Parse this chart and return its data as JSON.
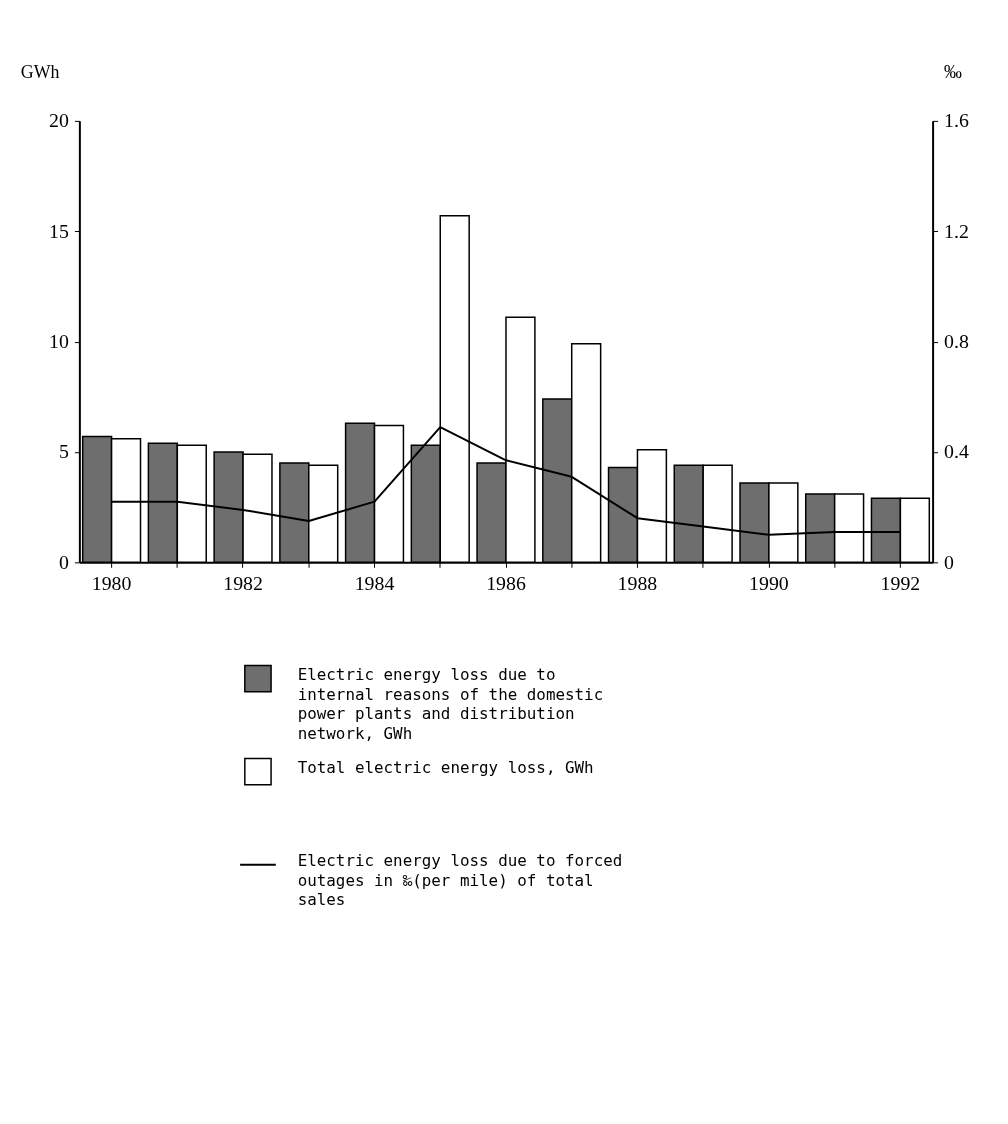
{
  "chart_data": {
    "type": "bar",
    "categories": [
      "1980",
      null,
      "1982",
      null,
      "1984",
      null,
      "1986",
      null,
      "1988",
      null,
      "1990",
      null,
      "1992"
    ],
    "series": [
      {
        "name": "Electric energy loss due to internal reasons of the domestic power plants and distribution network, GWh",
        "color": "#6e6e6e",
        "values": [
          5.7,
          5.4,
          5.0,
          4.5,
          6.3,
          5.3,
          4.5,
          7.4,
          4.3,
          4.4,
          3.6,
          3.1,
          2.9
        ]
      },
      {
        "name": "Total electric energy loss, GWh",
        "color": "#ffffff",
        "values": [
          5.6,
          5.3,
          4.9,
          4.4,
          6.2,
          15.7,
          11.1,
          9.9,
          5.1,
          4.4,
          3.6,
          3.1,
          2.9
        ]
      },
      {
        "name": "Electric energy loss due to forced outages in ‰(per mile) of total sales",
        "type": "line",
        "axis": "y2",
        "color": "#000000",
        "values": [
          0.22,
          0.22,
          0.19,
          0.15,
          0.22,
          0.49,
          0.37,
          0.31,
          0.16,
          0.13,
          0.1,
          0.11,
          0.11
        ]
      }
    ],
    "ylabel": "GWh",
    "y2label": "‰",
    "ylim": [
      0,
      20
    ],
    "yticks": [
      0,
      5,
      10,
      15,
      20
    ],
    "y2lim": [
      0,
      1.6
    ],
    "y2ticks": [
      0,
      0.4,
      0.8,
      1.2,
      1.6
    ],
    "grid": false,
    "legend": "bottom",
    "marker": "none",
    "line_style": "solid"
  }
}
